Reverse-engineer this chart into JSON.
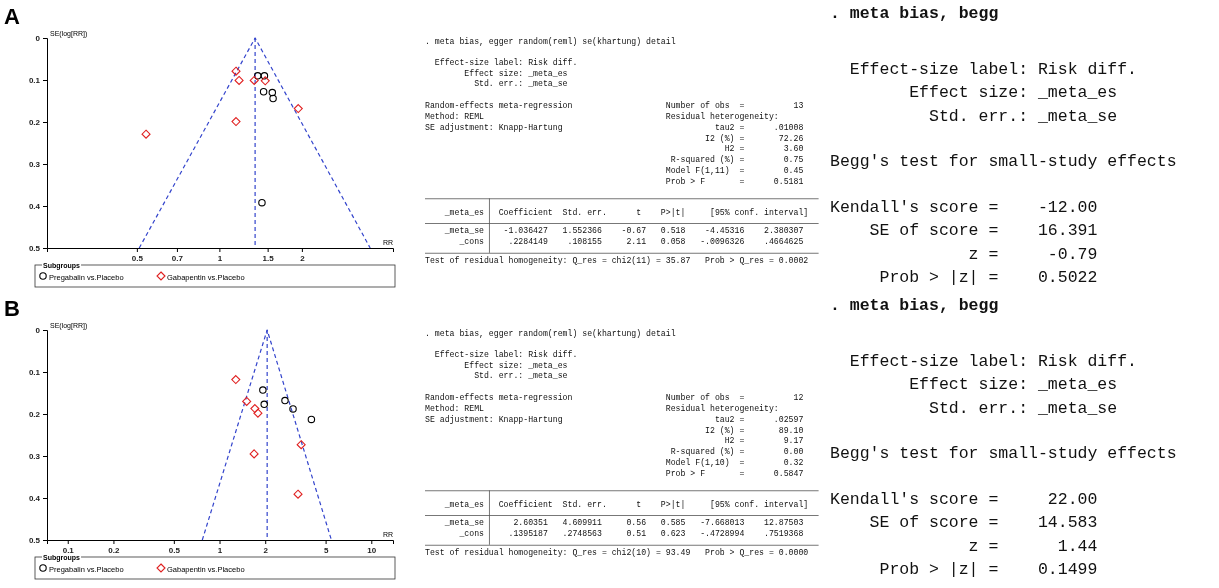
{
  "chart_data": [
    {
      "type": "scatter",
      "title": "A",
      "ylabel": "SE(log[RR])",
      "xlabel": "RR",
      "log": "x",
      "xlim": [
        0.235,
        4.3
      ],
      "xticks": [
        0.5,
        0.7,
        1,
        1.5,
        2
      ],
      "ylim": [
        0.5,
        0
      ],
      "yticks": [
        0,
        0.1,
        0.2,
        0.3,
        0.4,
        0.5
      ],
      "legend": "bottom",
      "legend_title": "Subgroups",
      "ref_lines": [
        {
          "axis": "x",
          "value": 1.35,
          "color": "#3344cc",
          "line_style": "dashed"
        }
      ],
      "series": [
        {
          "type": "line",
          "color": "#3344cc",
          "line_style": "dashed",
          "marker": "none",
          "x": [
            0.51,
            1.35,
            3.55
          ],
          "values": [
            0.5,
            0,
            0.5
          ]
        },
        {
          "name": "Pregabalin vs.Placebo",
          "color": "#000000",
          "marker": "circle",
          "x": [
            1.38,
            1.46,
            1.45,
            1.56,
            1.57,
            1.43
          ],
          "values": [
            0.09,
            0.09,
            0.128,
            0.13,
            0.144,
            0.392
          ]
        },
        {
          "name": "Gabapentin vs.Placebo",
          "color": "#e02020",
          "marker": "diamond",
          "x": [
            1.15,
            1.18,
            1.34,
            1.47,
            1.94,
            1.15,
            0.54
          ],
          "values": [
            0.079,
            0.101,
            0.101,
            0.102,
            0.168,
            0.199,
            0.229
          ]
        }
      ]
    },
    {
      "type": "other",
      "annotations": [
        ". meta bias, egger random(reml) se(khartung) detail",
        "  Effect-size label: Risk diff.",
        "        Effect size: _meta_es",
        "          Std. err.: _meta_se",
        "Random-effects meta-regression                   Number of obs  =          13",
        "Method: REML                                     Residual heterogeneity:",
        "SE adjustment: Knapp-Hartung                               tau2 =      .01008",
        "                                                         I2 (%) =       72.26",
        "                                                             H2 =        3.60",
        "                                                  R-squared (%) =        0.75",
        "                                                 Model F(1,11)  =        0.45",
        "                                                 Prob > F       =      0.5181",
        "    _meta_es   Coefficient  Std. err.      t    P>|t|     [95% conf. interval]",
        "    _meta_se    -1.036427   1.552366    -0.67   0.518    -4.45316    2.380307",
        "       _cons     .2284149    .108155     2.11   0.058   -.0096326    .4664625",
        "Test of residual homogeneity: Q_res = chi2(11) = 35.87   Prob > Q_res = 0.0002"
      ]
    },
    {
      "type": "other",
      "annotations": [
        ". meta bias, begg",
        "  Effect-size label: Risk diff.",
        "        Effect size: _meta_es",
        "          Std. err.: _meta_se",
        "Begg's test for small-study effects",
        "Kendall's score =    -12.00",
        "    SE of score =    16.391",
        "              z =     -0.79",
        "     Prob > |z| =    0.5022"
      ]
    },
    {
      "type": "scatter",
      "title": "B",
      "ylabel": "SE(log[RR])",
      "xlabel": "RR",
      "log": "x",
      "xlim": [
        0.073,
        13.9
      ],
      "xticks": [
        0.1,
        0.2,
        0.5,
        1,
        2,
        5,
        10
      ],
      "ylim": [
        0.5,
        0
      ],
      "yticks": [
        0,
        0.1,
        0.2,
        0.3,
        0.4,
        0.5
      ],
      "legend": "bottom",
      "legend_title": "Subgroups",
      "ref_lines": [
        {
          "axis": "x",
          "value": 2.06,
          "color": "#3344cc",
          "line_style": "dashed"
        }
      ],
      "series": [
        {
          "type": "line",
          "color": "#3344cc",
          "line_style": "dashed",
          "marker": "none",
          "x": [
            0.77,
            2.06,
            5.46
          ],
          "values": [
            0.5,
            0,
            0.5
          ]
        },
        {
          "name": "Pregabalin vs.Placebo",
          "color": "#000000",
          "marker": "circle",
          "x": [
            1.93,
            1.97,
            2.7,
            3.05,
            4.03
          ],
          "values": [
            0.143,
            0.177,
            0.168,
            0.188,
            0.213
          ]
        },
        {
          "name": "Gabapentin vs.Placebo",
          "color": "#e02020",
          "marker": "diamond",
          "x": [
            1.28,
            1.51,
            1.71,
            1.79,
            1.69,
            3.45,
            3.29
          ],
          "values": [
            0.118,
            0.17,
            0.187,
            0.198,
            0.295,
            0.273,
            0.391
          ]
        }
      ]
    },
    {
      "type": "other",
      "annotations": [
        ". meta bias, egger random(reml) se(khartung) detail",
        "  Effect-size label: Risk diff.",
        "        Effect size: _meta_es",
        "          Std. err.: _meta_se",
        "Random-effects meta-regression                   Number of obs  =          12",
        "Method: REML                                     Residual heterogeneity:",
        "SE adjustment: Knapp-Hartung                               tau2 =      .02597",
        "                                                         I2 (%) =       89.10",
        "                                                             H2 =        9.17",
        "                                                  R-squared (%) =        0.00",
        "                                                 Model F(1,10)  =        0.32",
        "                                                 Prob > F       =      0.5847",
        "    _meta_es   Coefficient  Std. err.      t    P>|t|     [95% conf. interval]",
        "    _meta_se      2.60351   4.609911     0.56   0.585   -7.668013    12.87503",
        "       _cons     .1395187   .2748563     0.51   0.623   -.4728994    .7519368",
        "Test of residual homogeneity: Q_res = chi2(10) = 93.49   Prob > Q_res = 0.0000"
      ]
    },
    {
      "type": "other",
      "annotations": [
        ". meta bias, begg",
        "  Effect-size label: Risk diff.",
        "        Effect size: _meta_es",
        "          Std. err.: _meta_se",
        "Begg's test for small-study effects",
        "Kendall's score =     22.00",
        "    SE of score =    14.583",
        "              z =      1.44",
        "     Prob > |z| =    0.1499"
      ]
    }
  ]
}
